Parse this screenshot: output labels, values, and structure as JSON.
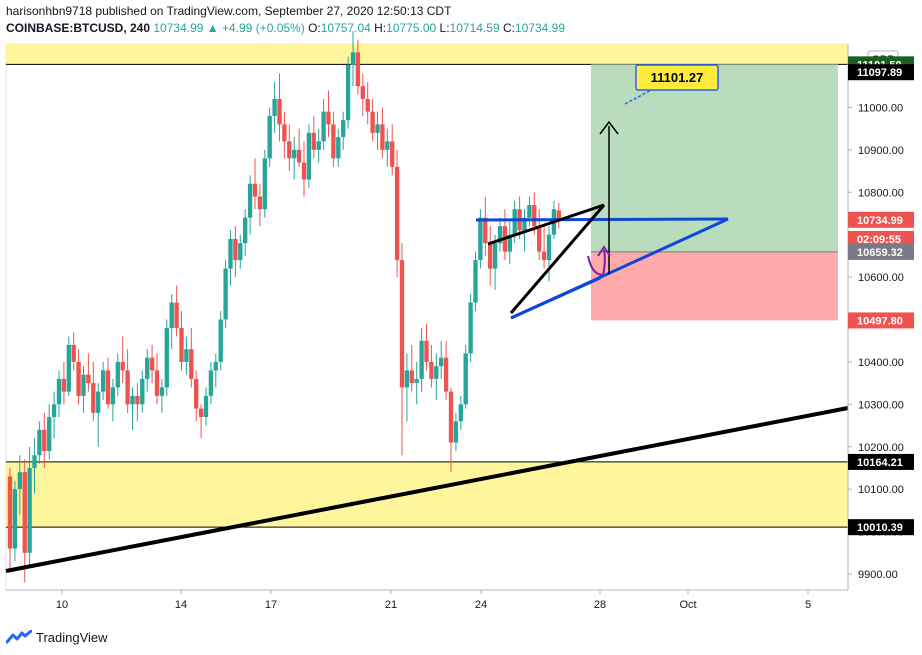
{
  "header": {
    "line1": "harisonhbn9718 published on TradingView.com, September 27, 2020 12:50:13 CDT",
    "symbol": "COINBASE:BTCUSD, 240",
    "last": "10734.99",
    "change": "▲ +4.99 (+0.05%)",
    "open_label": "O:",
    "open": "10757.04",
    "high_label": "H:",
    "high": "10775.00",
    "low_label": "L:",
    "low": "10714.59",
    "close_label": "C:",
    "close": "10734.99"
  },
  "footer": {
    "brand": "TradingView",
    "icon": "tradingview-logo-icon"
  },
  "currency_badge": "GBP",
  "chart_data": {
    "type": "candlestick",
    "y_axis": {
      "ticks": [
        "9900.00",
        "10000.00",
        "10100.00",
        "10200.00",
        "10300.00",
        "10400.00",
        "10500.00",
        "10600.00",
        "10700.00",
        "10800.00",
        "10900.00",
        "11000.00",
        "11100.00"
      ]
    },
    "x_axis": {
      "ticks": [
        "10",
        "14",
        "17",
        "21",
        "24",
        "28",
        "Oct",
        "5"
      ]
    },
    "price_labels": [
      {
        "text": "11101.50",
        "price": 11101.5,
        "color": "#1b5e20"
      },
      {
        "text": "11097.89",
        "price": 11083,
        "color": "#000000"
      },
      {
        "text": "10734.99",
        "price": 10734.99,
        "color": "#ef5350"
      },
      {
        "text": "02:09:55",
        "price": 10690,
        "color": "#ef5350"
      },
      {
        "text": "10659.32",
        "price": 10659.32,
        "color": "#787b86"
      },
      {
        "text": "10497.80",
        "price": 10497.8,
        "color": "#ef5350"
      },
      {
        "text": "10164.21",
        "price": 10164.21,
        "color": "#000000"
      },
      {
        "text": "10010.39",
        "price": 10010.39,
        "color": "#000000"
      }
    ],
    "callout": {
      "text": "11101.27",
      "color": "#ffeb3b"
    },
    "zones": [
      {
        "name": "supply-zone",
        "from": 11101.5,
        "to": 11160,
        "color": "#fff59d"
      },
      {
        "name": "demand-zone",
        "from": 10010.39,
        "to": 10164.21,
        "color": "#fff59d"
      }
    ],
    "position": {
      "entry": 10659.32,
      "target": 11101.5,
      "stop": 10497.8,
      "profit_color": "#b9dcbc",
      "loss_color": "#ffabab"
    },
    "candles": [
      [
        10130,
        10150,
        9910,
        9960
      ],
      [
        9960,
        10120,
        9930,
        10100
      ],
      [
        10100,
        10180,
        10040,
        10140
      ],
      [
        10140,
        10170,
        9880,
        9950
      ],
      [
        9950,
        10200,
        9920,
        10150
      ],
      [
        10150,
        10220,
        10090,
        10180
      ],
      [
        10180,
        10260,
        10160,
        10240
      ],
      [
        10240,
        10280,
        10150,
        10190
      ],
      [
        10190,
        10300,
        10170,
        10270
      ],
      [
        10270,
        10330,
        10220,
        10300
      ],
      [
        10300,
        10380,
        10270,
        10360
      ],
      [
        10360,
        10400,
        10300,
        10330
      ],
      [
        10330,
        10460,
        10320,
        10440
      ],
      [
        10440,
        10470,
        10380,
        10400
      ],
      [
        10400,
        10430,
        10300,
        10320
      ],
      [
        10320,
        10390,
        10280,
        10370
      ],
      [
        10370,
        10420,
        10330,
        10350
      ],
      [
        10350,
        10400,
        10260,
        10280
      ],
      [
        10280,
        10350,
        10200,
        10330
      ],
      [
        10330,
        10400,
        10310,
        10380
      ],
      [
        10380,
        10410,
        10290,
        10300
      ],
      [
        10300,
        10360,
        10260,
        10340
      ],
      [
        10340,
        10420,
        10320,
        10400
      ],
      [
        10400,
        10460,
        10350,
        10380
      ],
      [
        10380,
        10430,
        10280,
        10300
      ],
      [
        10300,
        10340,
        10240,
        10320
      ],
      [
        10320,
        10350,
        10260,
        10300
      ],
      [
        10300,
        10380,
        10280,
        10360
      ],
      [
        10360,
        10430,
        10330,
        10410
      ],
      [
        10410,
        10440,
        10350,
        10380
      ],
      [
        10380,
        10420,
        10300,
        10320
      ],
      [
        10320,
        10360,
        10280,
        10340
      ],
      [
        10340,
        10500,
        10320,
        10480
      ],
      [
        10480,
        10560,
        10430,
        10540
      ],
      [
        10540,
        10580,
        10460,
        10480
      ],
      [
        10480,
        10520,
        10380,
        10400
      ],
      [
        10400,
        10460,
        10370,
        10430
      ],
      [
        10430,
        10480,
        10340,
        10360
      ],
      [
        10360,
        10380,
        10260,
        10290
      ],
      [
        10290,
        10300,
        10220,
        10270
      ],
      [
        10270,
        10340,
        10250,
        10320
      ],
      [
        10320,
        10400,
        10300,
        10380
      ],
      [
        10380,
        10420,
        10340,
        10400
      ],
      [
        10400,
        10520,
        10380,
        10500
      ],
      [
        10500,
        10640,
        10480,
        10620
      ],
      [
        10620,
        10710,
        10580,
        10690
      ],
      [
        10690,
        10720,
        10600,
        10640
      ],
      [
        10640,
        10700,
        10620,
        10680
      ],
      [
        10680,
        10760,
        10650,
        10740
      ],
      [
        10740,
        10840,
        10700,
        10820
      ],
      [
        10820,
        10880,
        10760,
        10790
      ],
      [
        10790,
        10820,
        10720,
        10760
      ],
      [
        10760,
        10900,
        10740,
        10880
      ],
      [
        10880,
        11000,
        10860,
        10980
      ],
      [
        10980,
        11060,
        10940,
        11020
      ],
      [
        11020,
        11080,
        10920,
        10960
      ],
      [
        10960,
        10990,
        10880,
        10920
      ],
      [
        10920,
        10960,
        10850,
        10880
      ],
      [
        10880,
        10930,
        10830,
        10900
      ],
      [
        10900,
        10950,
        10860,
        10870
      ],
      [
        10870,
        10920,
        10790,
        10830
      ],
      [
        10830,
        10960,
        10810,
        10940
      ],
      [
        10940,
        10980,
        10880,
        10900
      ],
      [
        10900,
        10950,
        10870,
        10920
      ],
      [
        10920,
        11020,
        10900,
        10990
      ],
      [
        10990,
        11040,
        10930,
        10960
      ],
      [
        10960,
        10990,
        10860,
        10880
      ],
      [
        10880,
        10950,
        10860,
        10930
      ],
      [
        10930,
        10990,
        10900,
        10970
      ],
      [
        10970,
        11120,
        10950,
        11100
      ],
      [
        11100,
        11180,
        11050,
        11130
      ],
      [
        11130,
        11160,
        11030,
        11050
      ],
      [
        11050,
        11080,
        10980,
        11020
      ],
      [
        11020,
        11060,
        10960,
        10990
      ],
      [
        10990,
        11020,
        10920,
        10940
      ],
      [
        10940,
        10990,
        10900,
        10960
      ],
      [
        10960,
        11000,
        10880,
        10900
      ],
      [
        10900,
        10950,
        10860,
        10920
      ],
      [
        10920,
        10960,
        10840,
        10860
      ],
      [
        10860,
        10900,
        10600,
        10640
      ],
      [
        10640,
        10680,
        10180,
        10340
      ],
      [
        10340,
        10420,
        10260,
        10380
      ],
      [
        10380,
        10440,
        10330,
        10350
      ],
      [
        10350,
        10400,
        10300,
        10360
      ],
      [
        10360,
        10480,
        10330,
        10450
      ],
      [
        10450,
        10490,
        10380,
        10400
      ],
      [
        10400,
        10440,
        10340,
        10360
      ],
      [
        10360,
        10420,
        10310,
        10390
      ],
      [
        10390,
        10450,
        10360,
        10410
      ],
      [
        10410,
        10450,
        10310,
        10330
      ],
      [
        10330,
        10340,
        10140,
        10210
      ],
      [
        10210,
        10280,
        10190,
        10260
      ],
      [
        10260,
        10320,
        10240,
        10300
      ],
      [
        10300,
        10440,
        10290,
        10420
      ],
      [
        10420,
        10560,
        10400,
        10540
      ],
      [
        10540,
        10660,
        10520,
        10640
      ],
      [
        10640,
        10760,
        10620,
        10740
      ],
      [
        10740,
        10790,
        10650,
        10680
      ],
      [
        10680,
        10720,
        10580,
        10620
      ],
      [
        10620,
        10700,
        10570,
        10680
      ],
      [
        10680,
        10740,
        10660,
        10720
      ],
      [
        10720,
        10760,
        10640,
        10660
      ],
      [
        10660,
        10730,
        10630,
        10700
      ],
      [
        10700,
        10780,
        10680,
        10760
      ],
      [
        10760,
        10790,
        10690,
        10710
      ],
      [
        10710,
        10760,
        10660,
        10740
      ],
      [
        10740,
        10790,
        10720,
        10770
      ],
      [
        10770,
        10800,
        10700,
        10720
      ],
      [
        10720,
        10760,
        10640,
        10660
      ],
      [
        10660,
        10720,
        10620,
        10640
      ],
      [
        10640,
        10720,
        10590,
        10700
      ],
      [
        10700,
        10780,
        10690,
        10760
      ],
      [
        10757.04,
        10775,
        10714.59,
        10734.99
      ]
    ],
    "trendlines": [
      {
        "name": "long-term-support-line",
        "color": "#000000",
        "width": 4,
        "p1": [
          0,
          9895
        ],
        "p2": [
          1,
          10322
        ]
      }
    ]
  }
}
